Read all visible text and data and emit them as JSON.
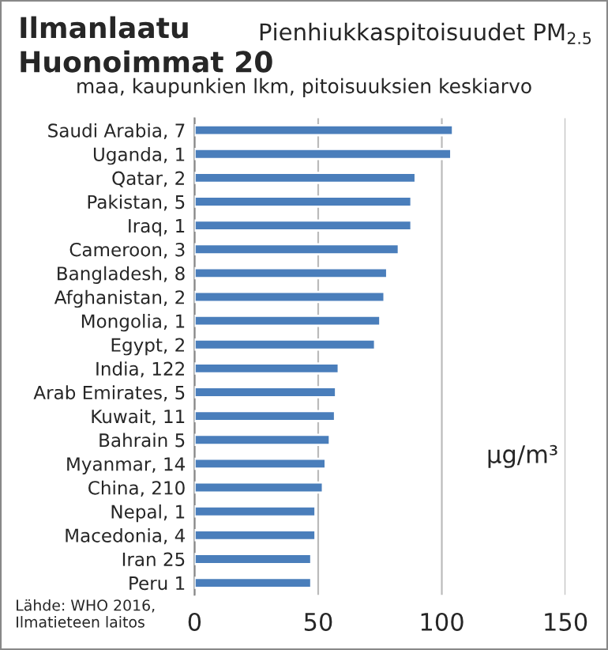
{
  "chart_data": {
    "type": "bar",
    "orientation": "horizontal",
    "title": "Ilmanlaatu\nHuonoimmat 20",
    "subtitle": "Pienhiukkaspitoisuudet PM$_{2.5}$",
    "annotations": [
      "maa, kaupunkien lkm, pitoisuuksien keskiarvo",
      "µg/m³",
      "Lähde: WHO 2016,\nIlmatieteen laitos"
    ],
    "categories": [
      "Saudi Arabia, 7",
      "Uganda, 1",
      "Qatar, 2",
      "Pakistan, 5",
      "Iraq, 1",
      "Cameroon, 3",
      "Bangladesh, 8",
      "Afghanistan, 2",
      "Mongolia, 1",
      "Egypt, 2",
      "India, 122",
      "Arab Emirates, 5",
      "Kuwait, 11",
      "Bahrain 5",
      "Myanmar, 14",
      "China, 210",
      "Nepal, 1",
      "Macedonia, 4",
      "Iran 25",
      "Peru 1"
    ],
    "values": [
      104.5,
      103.8,
      89.4,
      87.7,
      87.7,
      82.6,
      77.9,
      76.8,
      75.1,
      73,
      58.3,
      57.2,
      56.8,
      54.7,
      53,
      51.9,
      48.9,
      48.9,
      47.2,
      47.2
    ],
    "color": "#4a7ebb",
    "xlim": [
      0,
      150
    ],
    "xticks": [
      0,
      50,
      100,
      150
    ],
    "grid": "x",
    "legend": false
  }
}
